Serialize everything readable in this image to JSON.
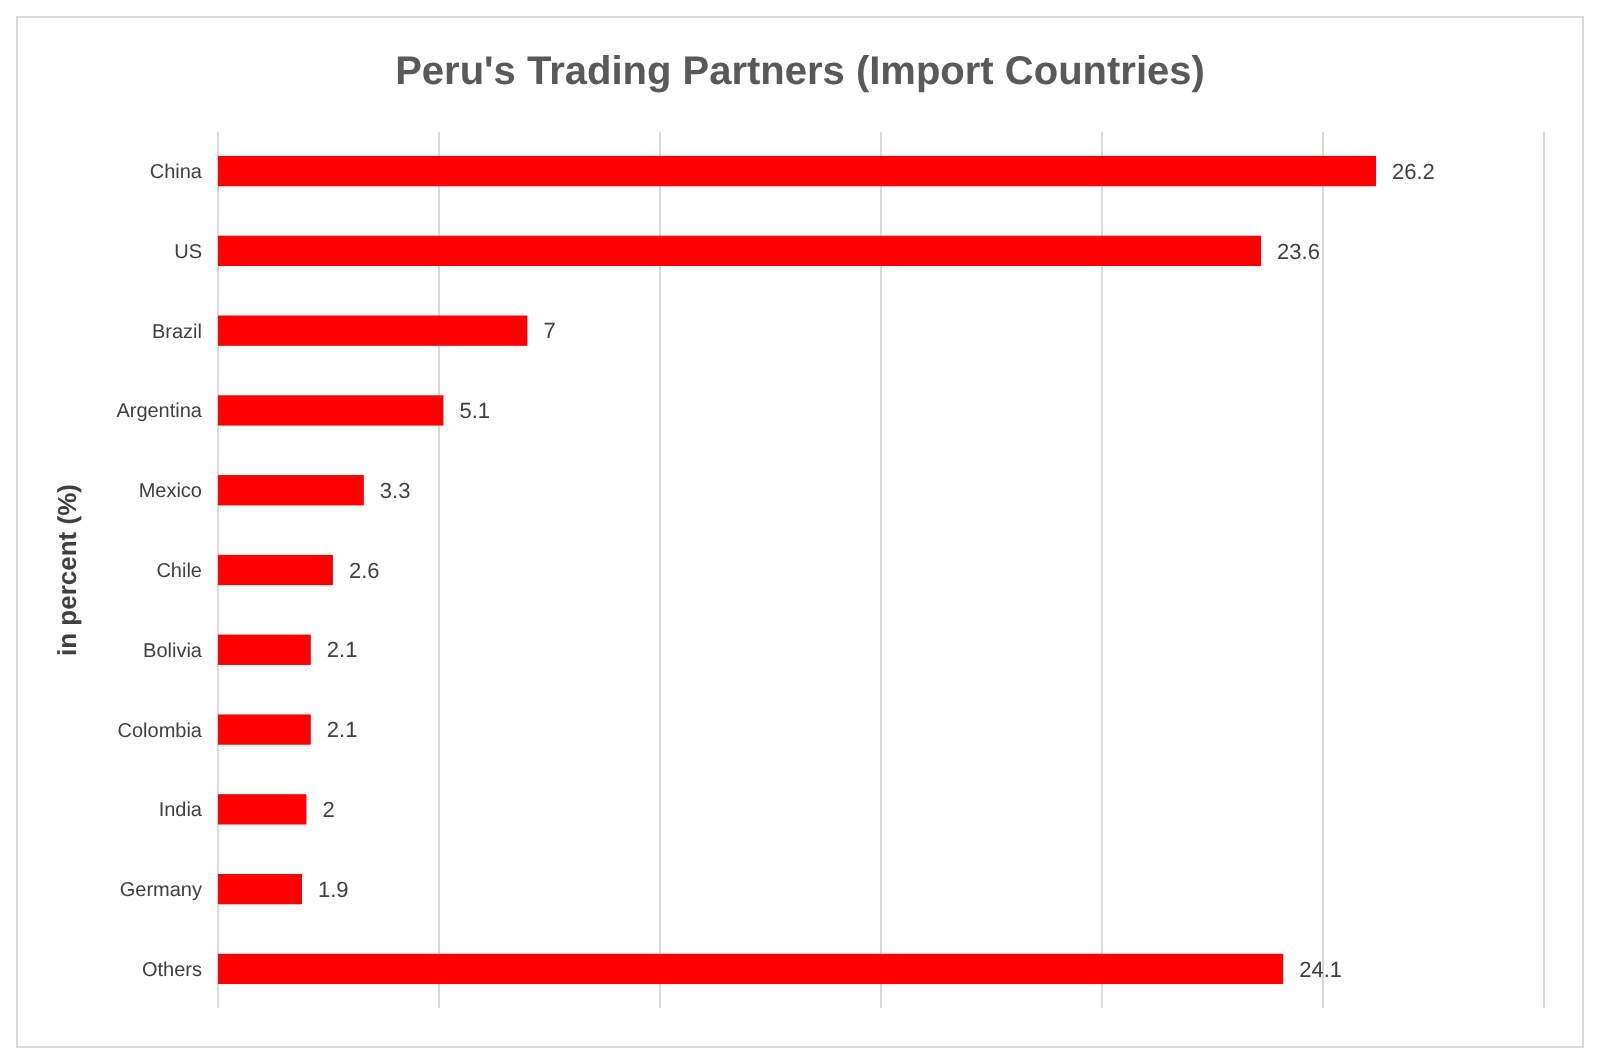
{
  "chart_data": {
    "type": "bar",
    "orientation": "horizontal",
    "title": "Peru's Trading Partners (Import Countries)",
    "ylabel": "in percent (%)",
    "categories": [
      "China",
      "US",
      "Brazil",
      "Argentina",
      "Mexico",
      "Chile",
      "Bolivia",
      "Colombia",
      "India",
      "Germany",
      "Others"
    ],
    "values": [
      26.2,
      23.6,
      7,
      5.1,
      3.3,
      2.6,
      2.1,
      2.1,
      2,
      1.9,
      24.1
    ],
    "color": "#ff0000",
    "data_labels": true,
    "grid": "x",
    "xlim": [
      0,
      30
    ],
    "xticks": [
      {
        "value": 0,
        "label": null
      },
      {
        "value": 5,
        "label": null
      },
      {
        "value": 10,
        "label": null
      },
      {
        "value": 15,
        "label": null
      },
      {
        "value": 20,
        "label": null
      },
      {
        "value": 25,
        "label": null
      },
      {
        "value": 30,
        "label": null
      }
    ]
  }
}
